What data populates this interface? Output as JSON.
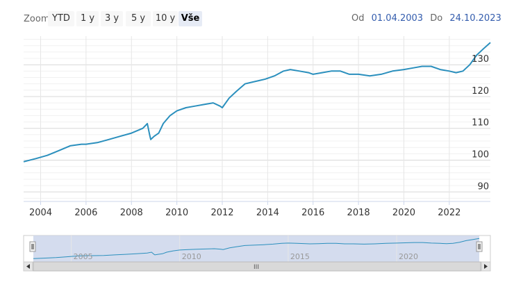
{
  "zoom": {
    "label": "Zoom",
    "buttons": [
      "YTD",
      "1 y",
      "3 y",
      "5 y",
      "10 y",
      "Vše"
    ],
    "active": "Vše"
  },
  "range": {
    "from_label": "Od",
    "from_value": "01.04.2003",
    "to_label": "Do",
    "to_value": "24.10.2023"
  },
  "navigator": {
    "year_labels": [
      "2005",
      "2010",
      "2015",
      "2020"
    ],
    "scroll_grip": "III"
  },
  "chart_data": {
    "type": "line",
    "title": "",
    "xlabel": "",
    "ylabel": "",
    "xlim": [
      2003.25,
      2023.81
    ],
    "ylim": [
      87,
      139
    ],
    "x_ticks": [
      "2004",
      "2006",
      "2008",
      "2010",
      "2012",
      "2014",
      "2016",
      "2018",
      "2020",
      "2022"
    ],
    "y_ticks": [
      90,
      100,
      110,
      120,
      130
    ],
    "grid": true,
    "series": [
      {
        "name": "",
        "color": "#2a8fbd",
        "x": [
          2003.25,
          2003.8,
          2004.3,
          2004.8,
          2005.3,
          2005.8,
          2006.0,
          2006.5,
          2007.0,
          2007.5,
          2008.0,
          2008.5,
          2008.7,
          2008.8,
          2008.85,
          2009.0,
          2009.2,
          2009.4,
          2009.7,
          2010.0,
          2010.4,
          2010.8,
          2011.2,
          2011.6,
          2011.9,
          2012.0,
          2012.3,
          2012.6,
          2013.0,
          2013.3,
          2013.6,
          2013.9,
          2014.3,
          2014.7,
          2015.0,
          2015.4,
          2015.8,
          2016.0,
          2016.4,
          2016.8,
          2017.2,
          2017.6,
          2018.0,
          2018.5,
          2019.0,
          2019.5,
          2020.0,
          2020.4,
          2020.8,
          2021.2,
          2021.6,
          2022.0,
          2022.3,
          2022.6,
          2022.9,
          2023.2,
          2023.5,
          2023.81
        ],
        "y": [
          99.5,
          100.5,
          101.5,
          103.0,
          104.5,
          105.0,
          105.0,
          105.5,
          106.5,
          107.5,
          108.5,
          110.0,
          111.5,
          108.0,
          106.5,
          107.5,
          108.5,
          111.5,
          114.0,
          115.5,
          116.5,
          117.0,
          117.5,
          118.0,
          117.0,
          116.5,
          119.5,
          121.5,
          124.0,
          124.5,
          125.0,
          125.5,
          126.5,
          128.0,
          128.5,
          128.0,
          127.5,
          127.0,
          127.5,
          128.0,
          128.0,
          127.0,
          127.0,
          126.5,
          127.0,
          128.0,
          128.5,
          129.0,
          129.5,
          129.5,
          128.5,
          128.0,
          127.5,
          128.0,
          130.0,
          133.0,
          135.0,
          137.0
        ]
      }
    ]
  }
}
